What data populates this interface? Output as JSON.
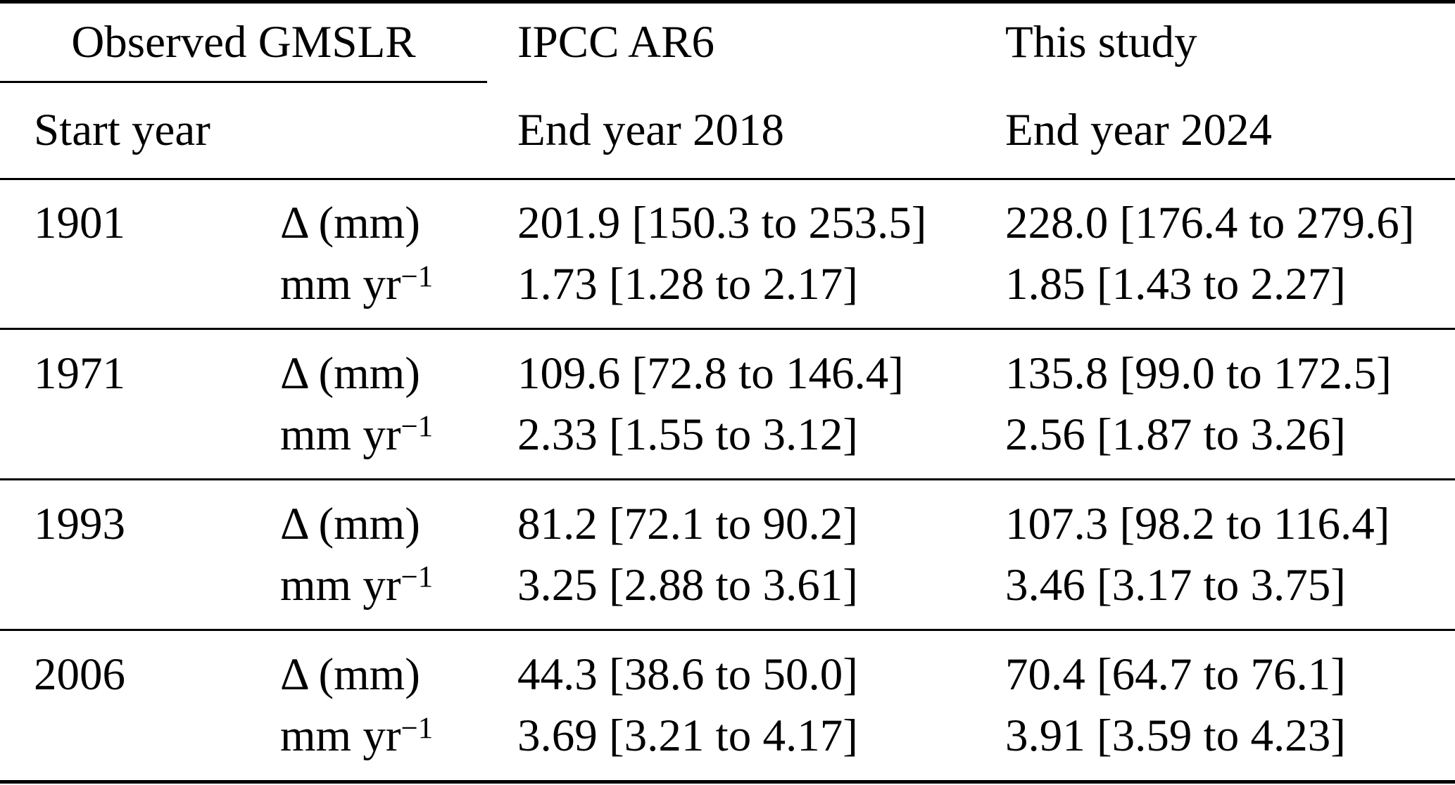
{
  "table": {
    "colors": {
      "text": "#000000",
      "background": "#ffffff",
      "rule": "#000000"
    },
    "header": {
      "observed_gmslr": "Observed GMSLR",
      "ipcc_ar6": "IPCC AR6",
      "this_study": "This study",
      "start_year": "Start year",
      "end_year_2018": "End year 2018",
      "end_year_2024": "End year 2024"
    },
    "row_labels": {
      "delta": "Δ (mm)",
      "rate_base": "mm yr",
      "rate_sup": "−1"
    },
    "rows": [
      {
        "start_year": "1901",
        "delta_ipcc_ar6": "201.9 [150.3 to 253.5]",
        "delta_this_study": "228.0 [176.4 to 279.6]",
        "rate_ipcc_ar6": "1.73 [1.28 to 2.17]",
        "rate_this_study": "1.85 [1.43 to 2.27]"
      },
      {
        "start_year": "1971",
        "delta_ipcc_ar6": "109.6 [72.8 to 146.4]",
        "delta_this_study": "135.8 [99.0 to 172.5]",
        "rate_ipcc_ar6": "2.33 [1.55 to 3.12]",
        "rate_this_study": "2.56 [1.87 to 3.26]"
      },
      {
        "start_year": "1993",
        "delta_ipcc_ar6": "81.2 [72.1 to 90.2]",
        "delta_this_study": "107.3 [98.2 to 116.4]",
        "rate_ipcc_ar6": "3.25 [2.88 to 3.61]",
        "rate_this_study": "3.46 [3.17 to 3.75]"
      },
      {
        "start_year": "2006",
        "delta_ipcc_ar6": "44.3 [38.6 to 50.0]",
        "delta_this_study": "70.4 [64.7 to 76.1]",
        "rate_ipcc_ar6": "3.69 [3.21 to 4.17]",
        "rate_this_study": "3.91 [3.59 to 4.23]"
      }
    ]
  }
}
